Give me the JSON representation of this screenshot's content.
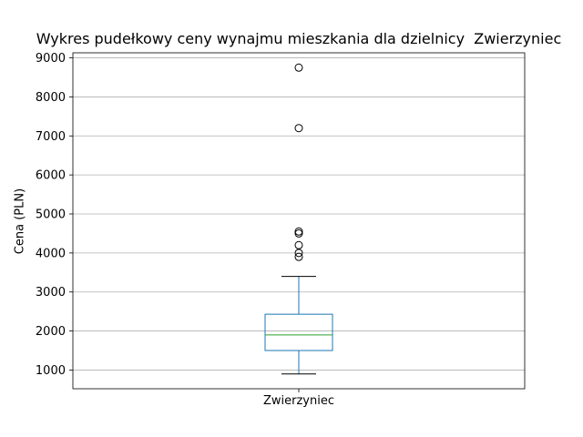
{
  "chart_data": {
    "type": "box",
    "title": "Wykres pudełkowy ceny wynajmu mieszkania dla dzielnicy  Zwierzyniec",
    "xlabel": "",
    "ylabel": "Cena (PLN)",
    "categories": [
      "Zwierzyniec"
    ],
    "boxes": [
      {
        "name": "Zwierzyniec",
        "whisker_low": 900,
        "q1": 1500,
        "median": 1900,
        "q3": 2430,
        "whisker_high": 3400,
        "outliers": [
          3900,
          4000,
          4200,
          4500,
          4550,
          7200,
          8750
        ]
      }
    ],
    "yticks": [
      1000,
      2000,
      3000,
      4000,
      5000,
      6000,
      7000,
      8000,
      9000
    ],
    "ylim": [
      520,
      9130
    ],
    "grid": "horizontal",
    "colors": {
      "box": "#1f77b4",
      "median": "#2ca02c",
      "grid": "#b0b0b0",
      "outlier": "#000000"
    }
  }
}
